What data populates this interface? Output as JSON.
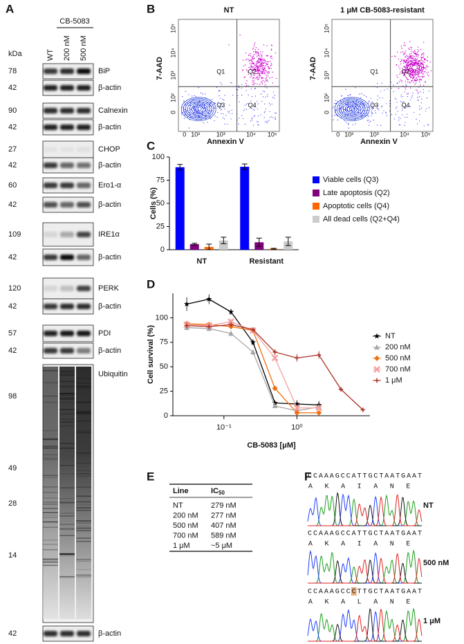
{
  "panel_labels": [
    "A",
    "B",
    "C",
    "D",
    "E",
    "F"
  ],
  "blot": {
    "kda_label": "kDa",
    "treatment": "CB-5083",
    "lanes": [
      "WT",
      "200 nM",
      "500 nM"
    ],
    "rows": [
      {
        "kda": 78,
        "label": "BiP"
      },
      {
        "kda": 42,
        "label": "β-actin"
      },
      {
        "kda": 90,
        "label": "Calnexin"
      },
      {
        "kda": 42,
        "label": "β-actin"
      },
      {
        "kda": 27,
        "label": "CHOP"
      },
      {
        "kda": 42,
        "label": "β-actin"
      },
      {
        "kda": 60,
        "label": "Ero1-α"
      },
      {
        "kda": 42,
        "label": "β-actin"
      },
      {
        "kda": 109,
        "label": "IRE1α"
      },
      {
        "kda": 42,
        "label": "β-actin"
      },
      {
        "kda": 120,
        "label": "PERK"
      },
      {
        "kda": 42,
        "label": "β-actin"
      },
      {
        "kda": 57,
        "label": "PDI"
      },
      {
        "kda": 42,
        "label": "β-actin"
      }
    ],
    "ubiquitin": {
      "label": "Ubiquitin",
      "markers": [
        98,
        49,
        28,
        14
      ]
    },
    "loading": {
      "kda": 42,
      "label": "β-actin"
    }
  },
  "flow": {
    "x_label": "Annexin V",
    "y_label": "7-AAD",
    "quadrants": [
      "Q1",
      "Q2",
      "Q3",
      "Q4"
    ],
    "ticks": [
      "0",
      "10²",
      "10³",
      "10⁴",
      "10⁵"
    ],
    "plots": [
      {
        "title": "NT"
      },
      {
        "title": "1 μM CB-5083-resistant"
      }
    ]
  },
  "chart_data": [
    {
      "type": "bar",
      "y_label": "Cells (%)",
      "categories": [
        "NT",
        "Resistant"
      ],
      "series": [
        {
          "name": "Viable cells (Q3)",
          "color": "#0000ff",
          "values": [
            89,
            89.5
          ],
          "errors": [
            3,
            3
          ]
        },
        {
          "name": "Late apoptosis (Q2)",
          "color": "#800080",
          "values": [
            6,
            8
          ],
          "errors": [
            1,
            4.5
          ]
        },
        {
          "name": "Apoptotic cells (Q4)",
          "color": "#ff6600",
          "values": [
            3,
            1
          ],
          "errors": [
            3,
            0.5
          ]
        },
        {
          "name": "All dead cells (Q2+Q4)",
          "color": "#cccccc",
          "values": [
            10,
            9
          ],
          "errors": [
            3.5,
            4.5
          ]
        }
      ],
      "ylim": [
        0,
        100
      ],
      "yticks": [
        0,
        25,
        50,
        75,
        100
      ],
      "legend": "right"
    },
    {
      "type": "line",
      "x_label": "CB-5083 [μM]",
      "y_label": "Cell survival (%)",
      "x_log": true,
      "x": [
        0.031,
        0.0625,
        0.125,
        0.25,
        0.5,
        1,
        2,
        4,
        8
      ],
      "series": [
        {
          "name": "NT",
          "color": "#000000",
          "marker": "star",
          "values": [
            114,
            119,
            106,
            75,
            13,
            12,
            11,
            null,
            null
          ],
          "errors": [
            7,
            5,
            3,
            3,
            2,
            4,
            4,
            null,
            null
          ]
        },
        {
          "name": "200 nM",
          "color": "#a6a6a6",
          "marker": "triangle",
          "values": [
            90,
            89,
            84,
            65,
            10,
            5,
            9,
            null,
            null
          ],
          "errors": [
            3,
            3,
            3,
            3,
            2,
            2,
            3,
            null,
            null
          ]
        },
        {
          "name": "500 nM",
          "color": "#f26f0f",
          "marker": "diamond",
          "values": [
            94,
            93,
            91,
            87,
            28,
            3,
            3,
            null,
            null
          ],
          "errors": [
            2,
            2,
            2,
            2,
            2,
            2,
            2,
            null,
            null
          ]
        },
        {
          "name": "700 nM",
          "color": "#f4a0a0",
          "marker": "x",
          "values": [
            93,
            92,
            96,
            87,
            59,
            8,
            8,
            null,
            null
          ],
          "errors": [
            3,
            3,
            3,
            3,
            3,
            3,
            3,
            null,
            null
          ]
        },
        {
          "name": "1 μM",
          "color": "#a93226",
          "marker": "plus",
          "values": [
            92,
            91,
            93,
            88,
            65,
            59,
            62,
            27,
            6
          ],
          "errors": [
            2,
            2,
            2,
            2,
            3,
            4,
            4,
            2,
            2
          ]
        }
      ],
      "xlim": [
        0.02,
        10
      ],
      "xticks": [
        {
          "value": 0.1,
          "label": "10⁻¹"
        },
        {
          "value": 1,
          "label": "10⁰"
        }
      ],
      "ylim": [
        0,
        125
      ],
      "yticks": [
        0,
        25,
        50,
        75,
        100
      ],
      "legend": "right"
    }
  ],
  "table": {
    "header": [
      "Line",
      {
        "text": "IC",
        "sub": "50"
      }
    ],
    "rows": [
      {
        "color": "#000000",
        "cells": [
          "NT",
          "279 nM"
        ]
      },
      {
        "color": "#a6a6a6",
        "cells": [
          "200 nM",
          "277 nM"
        ]
      },
      {
        "color": "#f26f0f",
        "cells": [
          "500 nM",
          "407 nM"
        ]
      },
      {
        "color": "#f4a0a0",
        "cells": [
          "700 nM",
          "589 nM"
        ]
      },
      {
        "color": "#a93226",
        "cells": [
          "1 μM",
          "~5 μM"
        ]
      }
    ]
  },
  "sequencing": {
    "traces": [
      {
        "label": "NT",
        "bases": "CCAAAGCCATTGCTAATGAAT",
        "residues": [
          "A",
          "K",
          "A",
          "I",
          "A",
          "N",
          "E"
        ]
      },
      {
        "label": "500 nM",
        "bases": "CCAAAGCCATTGCTAATGAAT",
        "residues": [
          "A",
          "K",
          "A",
          "I",
          "A",
          "N",
          "E"
        ]
      },
      {
        "label": "1 μM",
        "bases": "CCAAAGCCCTTGCTAATGAAT",
        "residues": [
          "A",
          "K",
          "A",
          "L",
          "A",
          "N",
          "E"
        ],
        "mutated_base": 8,
        "mutated_residue": 3
      }
    ]
  }
}
